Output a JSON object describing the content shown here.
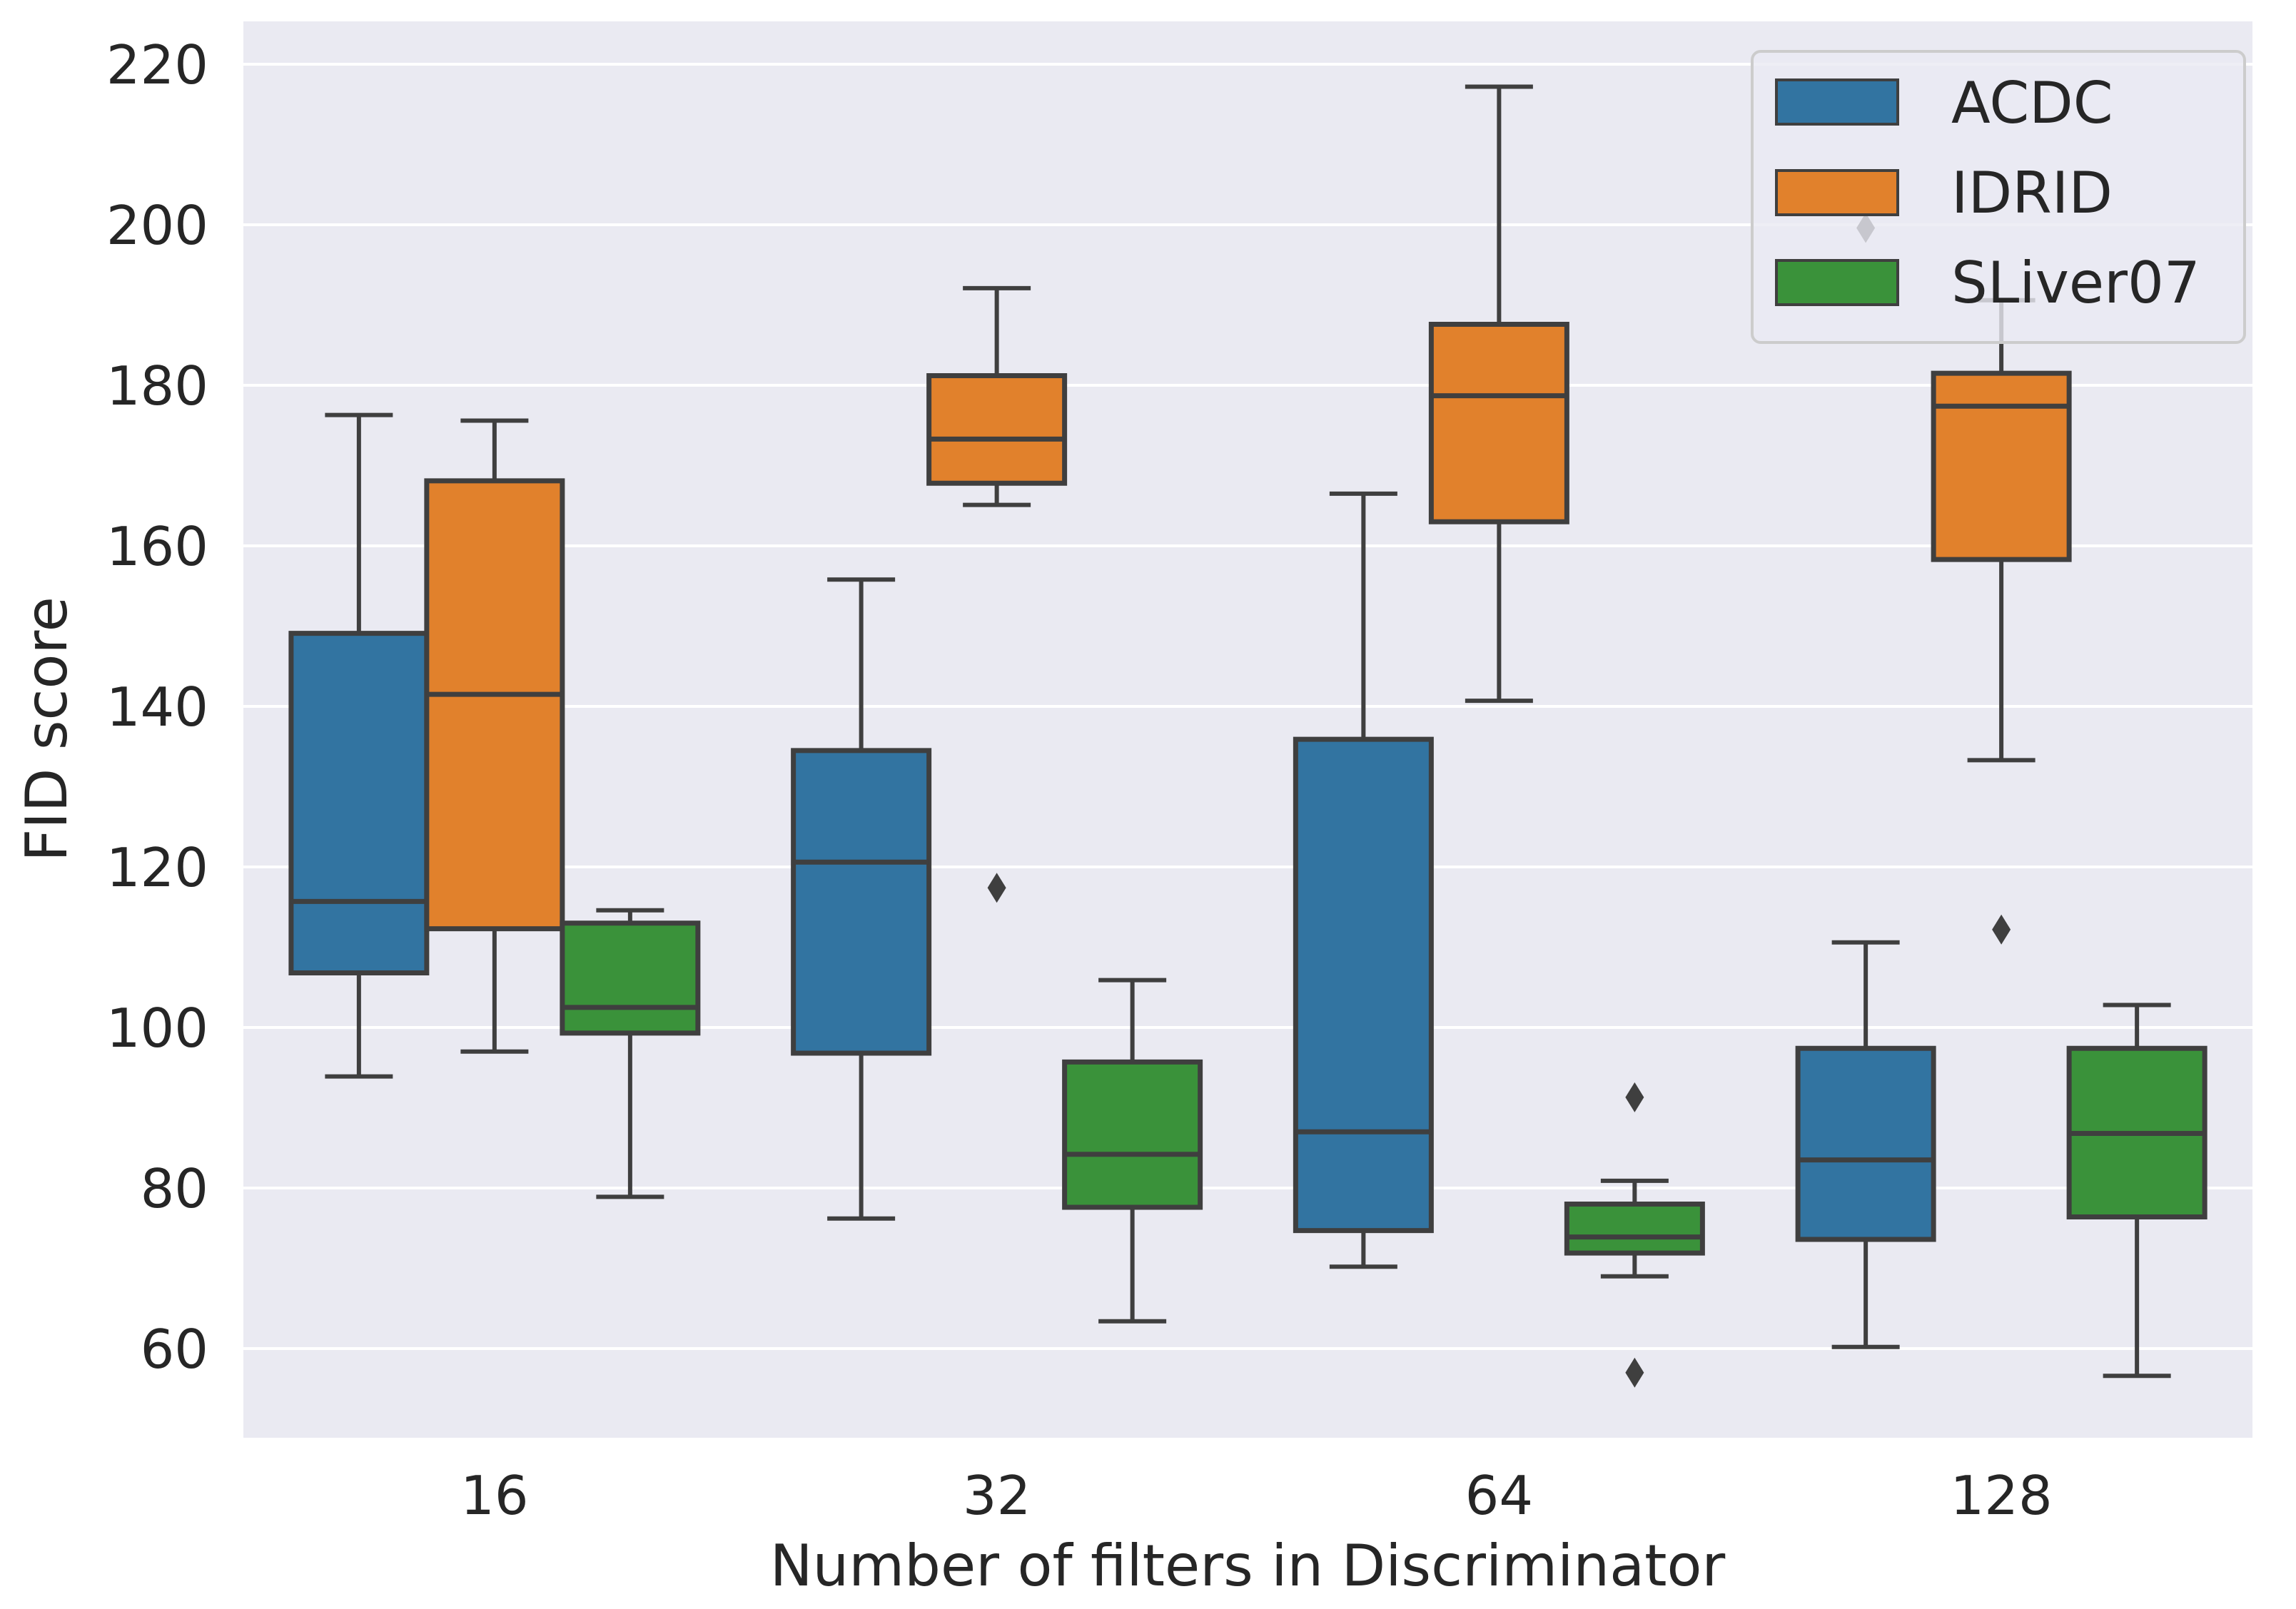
{
  "chart_data": {
    "type": "boxplot",
    "title": "",
    "xlabel": "Number of filters in Discriminator",
    "ylabel": "FID score",
    "ylim": [
      48,
      225
    ],
    "yticks": [
      60,
      80,
      100,
      120,
      140,
      160,
      180,
      200,
      220
    ],
    "categories": [
      "16",
      "32",
      "64",
      "128"
    ],
    "legend_position": "top-right",
    "series": [
      {
        "name": "ACDC",
        "color": "#3274a1",
        "boxes": [
          {
            "whisker_low": 93.9,
            "q1": 106.8,
            "median": 115.7,
            "q3": 149.1,
            "whisker_high": 176.3,
            "outliers": []
          },
          {
            "whisker_low": 76.2,
            "q1": 96.8,
            "median": 120.6,
            "q3": 134.5,
            "whisker_high": 155.8,
            "outliers": []
          },
          {
            "whisker_low": 70.2,
            "q1": 74.7,
            "median": 87.0,
            "q3": 135.9,
            "whisker_high": 166.5,
            "outliers": []
          },
          {
            "whisker_low": 60.2,
            "q1": 73.6,
            "median": 83.5,
            "q3": 97.4,
            "whisker_high": 110.6,
            "outliers": [
              199.6
            ]
          }
        ]
      },
      {
        "name": "IDRID",
        "color": "#e1812c",
        "boxes": [
          {
            "whisker_low": 97.0,
            "q1": 112.3,
            "median": 141.5,
            "q3": 168.1,
            "whisker_high": 175.6,
            "outliers": []
          },
          {
            "whisker_low": 165.1,
            "q1": 167.8,
            "median": 173.3,
            "q3": 181.2,
            "whisker_high": 192.1,
            "outliers": [
              117.4
            ]
          },
          {
            "whisker_low": 140.7,
            "q1": 163.0,
            "median": 178.7,
            "q3": 187.6,
            "whisker_high": 217.2,
            "outliers": []
          },
          {
            "whisker_low": 133.3,
            "q1": 158.3,
            "median": 177.4,
            "q3": 181.5,
            "whisker_high": 190.6,
            "outliers": [
              112.2
            ]
          }
        ]
      },
      {
        "name": "SLiver07",
        "color": "#3a923a",
        "boxes": [
          {
            "whisker_low": 78.9,
            "q1": 99.3,
            "median": 102.5,
            "q3": 113.0,
            "whisker_high": 114.6,
            "outliers": []
          },
          {
            "whisker_low": 63.4,
            "q1": 77.6,
            "median": 84.2,
            "q3": 95.7,
            "whisker_high": 105.9,
            "outliers": []
          },
          {
            "whisker_low": 69.0,
            "q1": 71.9,
            "median": 73.9,
            "q3": 78.0,
            "whisker_high": 80.9,
            "outliers": [
              91.3,
              57.0
            ]
          },
          {
            "whisker_low": 56.6,
            "q1": 76.4,
            "median": 86.8,
            "q3": 97.4,
            "whisker_high": 102.8,
            "outliers": []
          }
        ]
      }
    ]
  },
  "colors": {
    "plot_background": "#eaeaf2",
    "grid": "#ffffff",
    "box_edge": "#3f3f3f",
    "text": "#262626"
  }
}
